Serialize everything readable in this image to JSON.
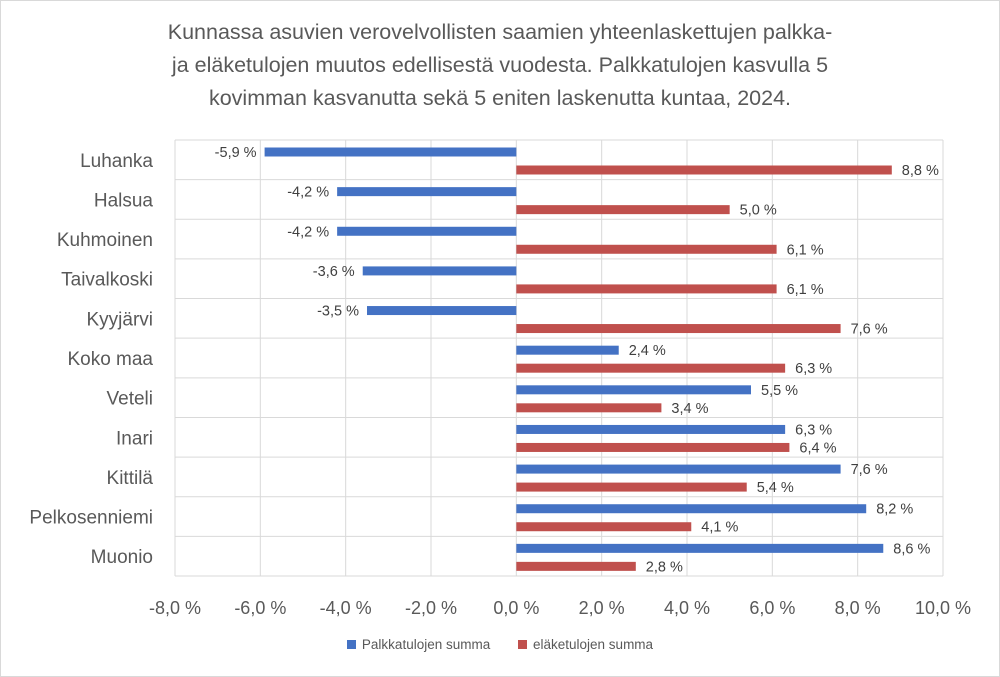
{
  "chart_data": {
    "type": "bar",
    "orientation": "horizontal",
    "title_lines": [
      "Kunnassa asuvien verovelvollisten saamien yhteenlaskettujen palkka-",
      "ja eläketulojen muutos edellisestä vuodesta. Palkkatulojen kasvulla 5",
      "kovimman kasvanutta sekä 5 eniten laskenutta kuntaa, 2024."
    ],
    "categories": [
      "Luhanka",
      "Halsua",
      "Kuhmoinen",
      "Taivalkoski",
      "Kyyjärvi",
      "Koko maa",
      "Veteli",
      "Inari",
      "Kittilä",
      "Pelkosenniemi",
      "Muonio"
    ],
    "series": [
      {
        "name": "Palkkatulojen summa",
        "color": "#4472c4",
        "values": [
          -5.9,
          -4.2,
          -4.2,
          -3.6,
          -3.5,
          2.4,
          5.5,
          6.3,
          7.6,
          8.2,
          8.6
        ],
        "labels": [
          "-5,9 %",
          "-4,2 %",
          "-4,2 %",
          "-3,6 %",
          "-3,5 %",
          "2,4 %",
          "5,5 %",
          "6,3 %",
          "7,6 %",
          "8,2 %",
          "8,6 %"
        ]
      },
      {
        "name": "eläketulojen summa",
        "color": "#c0504d",
        "values": [
          8.8,
          5.0,
          6.1,
          6.1,
          7.6,
          6.3,
          3.4,
          6.4,
          5.4,
          4.1,
          2.8
        ],
        "labels": [
          "8,8 %",
          "5,0 %",
          "6,1 %",
          "6,1 %",
          "7,6 %",
          "6,3 %",
          "3,4 %",
          "6,4 %",
          "5,4 %",
          "4,1 %",
          "2,8 %"
        ]
      }
    ],
    "xlim": [
      -8,
      10
    ],
    "x_ticks": [
      -8,
      -6,
      -4,
      -2,
      0,
      2,
      4,
      6,
      8,
      10
    ],
    "x_tick_labels": [
      "-8,0 %",
      "-6,0 %",
      "-4,0 %",
      "-2,0 %",
      "0,0 %",
      "2,0 %",
      "4,0 %",
      "6,0 %",
      "8,0 %",
      "10,0 %"
    ],
    "grid": true,
    "legend_position": "bottom"
  }
}
